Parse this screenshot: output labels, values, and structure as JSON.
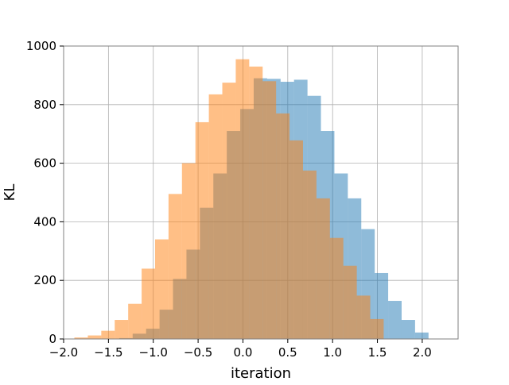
{
  "chart_data": {
    "type": "bar",
    "xlabel": "iteration",
    "ylabel": "KL",
    "xlim": [
      -2.0,
      2.4
    ],
    "ylim": [
      0,
      1000
    ],
    "grid": true,
    "bin_width": 0.15,
    "xticks": [
      -2.0,
      -1.5,
      -1.0,
      -0.5,
      0.0,
      0.5,
      1.0,
      1.5,
      2.0
    ],
    "xtick_labels": [
      "−2.0",
      "−1.5",
      "−1.0",
      "−0.5",
      "0.0",
      "0.5",
      "1.0",
      "1.5",
      "2.0"
    ],
    "yticks": [
      0,
      200,
      400,
      600,
      800,
      1000
    ],
    "ytick_labels": [
      "0",
      "200",
      "400",
      "600",
      "800",
      "1000"
    ],
    "series": [
      {
        "color": "#1f77b4",
        "opacity": 0.5,
        "bin_starts": [
          -1.38,
          -1.23,
          -1.08,
          -0.93,
          -0.78,
          -0.63,
          -0.48,
          -0.33,
          -0.18,
          -0.03,
          0.12,
          0.27,
          0.42,
          0.57,
          0.72,
          0.87,
          1.02,
          1.17,
          1.32,
          1.47,
          1.62,
          1.77,
          1.92
        ],
        "values": [
          3,
          18,
          35,
          100,
          205,
          305,
          448,
          565,
          710,
          785,
          890,
          888,
          878,
          885,
          830,
          710,
          565,
          480,
          375,
          225,
          130,
          65,
          22
        ]
      },
      {
        "color": "#ff7f0e",
        "opacity": 0.5,
        "bin_starts": [
          -1.88,
          -1.73,
          -1.58,
          -1.43,
          -1.28,
          -1.13,
          -0.98,
          -0.83,
          -0.68,
          -0.53,
          -0.38,
          -0.23,
          -0.08,
          0.07,
          0.22,
          0.37,
          0.52,
          0.67,
          0.82,
          0.97,
          1.12,
          1.27,
          1.42
        ],
        "values": [
          5,
          12,
          28,
          65,
          120,
          240,
          340,
          495,
          600,
          740,
          835,
          875,
          955,
          930,
          880,
          770,
          678,
          575,
          480,
          345,
          250,
          148,
          68
        ]
      }
    ]
  }
}
